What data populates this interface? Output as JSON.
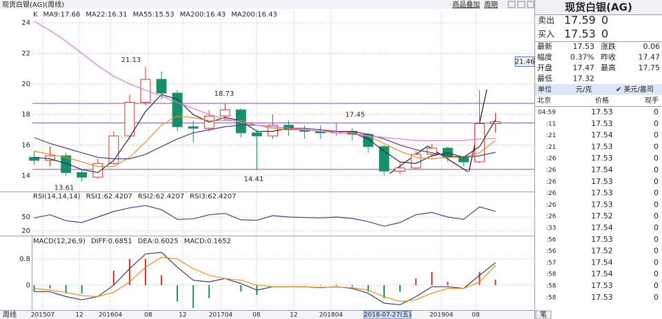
{
  "header": {
    "title": "现货白银(AG)(周线)",
    "buttons": [
      "商品叠加",
      "周期"
    ],
    "period": "周线"
  },
  "chart_data": {
    "type": "candlestick",
    "up_color": "#e0302a",
    "down_color": "#14916a",
    "candles": [
      [
        15.2,
        15.6,
        14.7,
        15.0
      ],
      [
        15.0,
        15.9,
        14.6,
        15.3
      ],
      [
        15.3,
        15.5,
        14.0,
        14.2
      ],
      [
        14.2,
        14.4,
        13.61,
        13.9
      ],
      [
        13.9,
        15.1,
        13.8,
        14.8
      ],
      [
        14.8,
        16.9,
        14.7,
        16.6
      ],
      [
        16.6,
        19.3,
        16.4,
        18.8
      ],
      [
        18.8,
        21.13,
        18.6,
        20.3
      ],
      [
        20.3,
        20.8,
        19.0,
        19.4
      ],
      [
        19.4,
        19.6,
        16.9,
        17.2
      ],
      [
        17.2,
        17.6,
        16.2,
        17.1
      ],
      [
        17.1,
        18.3,
        16.9,
        17.9
      ],
      [
        17.9,
        18.73,
        17.6,
        18.3
      ],
      [
        18.3,
        18.4,
        16.5,
        16.8
      ],
      [
        16.8,
        17.0,
        14.41,
        16.6
      ],
      [
        16.6,
        18.0,
        16.4,
        17.3
      ],
      [
        17.3,
        17.6,
        16.6,
        17.0
      ],
      [
        17.0,
        17.3,
        16.4,
        16.9
      ],
      [
        16.9,
        17.3,
        16.4,
        16.8
      ],
      [
        16.8,
        17.45,
        16.6,
        16.9
      ],
      [
        16.9,
        17.1,
        16.3,
        16.7
      ],
      [
        16.7,
        16.8,
        15.5,
        15.9
      ],
      [
        15.9,
        16.0,
        14.0,
        14.3
      ],
      [
        14.3,
        14.9,
        14.1,
        14.5
      ],
      [
        14.5,
        15.6,
        14.4,
        15.4
      ],
      [
        15.4,
        16.1,
        15.2,
        15.8
      ],
      [
        15.8,
        15.9,
        14.9,
        15.2
      ],
      [
        15.2,
        15.3,
        14.6,
        14.9
      ],
      [
        14.9,
        19.6,
        14.8,
        17.4
      ],
      [
        17.4,
        18.1,
        16.8,
        17.53
      ]
    ],
    "legend_prefix": "K",
    "series": [
      {
        "name": "MA9:17.66",
        "color": "#2c2c3c",
        "values": [
          15.2,
          15.1,
          14.8,
          14.4,
          14.2,
          15.0,
          16.5,
          18.2,
          19.3,
          19.0,
          18.0,
          17.5,
          17.8,
          17.6,
          16.9,
          16.9,
          17.1,
          17.0,
          16.9,
          16.9,
          16.8,
          16.4,
          15.6,
          14.9,
          14.8,
          15.3,
          15.5,
          15.2,
          15.9,
          17.66
        ]
      },
      {
        "name": "MA22:16.31",
        "color": "#e8901c",
        "values": [
          15.6,
          15.4,
          15.2,
          14.9,
          14.6,
          14.6,
          15.2,
          16.2,
          17.3,
          17.9,
          17.8,
          17.6,
          17.6,
          17.6,
          17.3,
          17.1,
          17.0,
          17.0,
          16.9,
          16.9,
          16.8,
          16.6,
          16.1,
          15.6,
          15.2,
          15.1,
          15.2,
          15.2,
          15.5,
          16.31
        ]
      },
      {
        "name": "MA55:15.53",
        "color": "#4a3a8a",
        "values": [
          16.5,
          16.1,
          15.8,
          15.5,
          15.2,
          15.1,
          15.1,
          15.4,
          15.9,
          16.4,
          16.8,
          17.0,
          17.2,
          17.3,
          17.3,
          17.2,
          17.1,
          17.1,
          17.0,
          16.9,
          16.9,
          16.7,
          16.4,
          16.0,
          15.7,
          15.5,
          15.3,
          15.2,
          15.3,
          15.53
        ]
      },
      {
        "name": "MA200:16.43",
        "color": "#d27ce6",
        "values": [
          24.1,
          23.5,
          22.8,
          22.0,
          21.2,
          20.5,
          20.0,
          19.6,
          19.2,
          18.8,
          18.4,
          18.0,
          17.7,
          17.5,
          17.3,
          17.2,
          17.1,
          17.0,
          16.9,
          16.8,
          16.7,
          16.6,
          16.5,
          16.4,
          16.3,
          16.3,
          16.3,
          16.3,
          16.4,
          16.43
        ]
      }
    ],
    "extra_legend": [
      {
        "name": "MA200:16.43",
        "color": "#3a3a70"
      }
    ],
    "ylim": [
      12.96,
      24.77
    ],
    "yticks": [
      14,
      16,
      18,
      20,
      22,
      24
    ],
    "grid": true,
    "levels": [
      18.73,
      17.45,
      14.41
    ],
    "level_color": "#8a4aa8",
    "annotations": [
      21.13,
      18.73,
      17.45,
      14.41,
      13.61
    ],
    "cursor_price": 21.46,
    "x_labels": [
      "201507",
      "12",
      "201604",
      "08",
      "12",
      "201704",
      "08",
      "12",
      "201804",
      "2018-07-27(五)",
      "201904",
      "08"
    ],
    "rsi": {
      "title": "RSI(14,14,14)",
      "series": [
        {
          "name": "RSI1:62.4207",
          "color": "#4a3a8a",
          "values": [
            48,
            55,
            42,
            38,
            50,
            62,
            70,
            75,
            66,
            45,
            46,
            55,
            58,
            44,
            43,
            53,
            50,
            49,
            48,
            50,
            47,
            40,
            30,
            38,
            55,
            60,
            50,
            45,
            72,
            62.4207
          ]
        }
      ],
      "extra_legend": [
        {
          "name": "RSI2:62.4207",
          "color": "#e8901c"
        },
        {
          "name": "RSI3:62.4207",
          "color": "#8a3a8a"
        }
      ],
      "ylim": [
        12.5,
        102.5
      ],
      "yticks": [
        20,
        50
      ]
    },
    "macd": {
      "title": "MACD(12,26,9)",
      "series": [
        {
          "name": "DIFF:0.6851",
          "color": "#3a3a60",
          "values": [
            -0.2,
            -0.2,
            -0.35,
            -0.45,
            -0.35,
            0.0,
            0.5,
            0.95,
            1.0,
            0.55,
            0.15,
            0.1,
            0.2,
            0.05,
            -0.15,
            -0.05,
            -0.05,
            -0.05,
            -0.08,
            -0.05,
            -0.1,
            -0.25,
            -0.55,
            -0.6,
            -0.35,
            -0.05,
            -0.05,
            -0.1,
            0.3,
            0.6851
          ]
        },
        {
          "name": "DEA:0.6025",
          "color": "#e8901c",
          "values": [
            -0.1,
            -0.15,
            -0.22,
            -0.32,
            -0.35,
            -0.22,
            0.1,
            0.55,
            0.85,
            0.8,
            0.5,
            0.3,
            0.2,
            0.15,
            0.0,
            -0.05,
            -0.05,
            -0.05,
            -0.07,
            -0.06,
            -0.08,
            -0.15,
            -0.35,
            -0.5,
            -0.45,
            -0.25,
            -0.1,
            -0.1,
            0.1,
            0.6025
          ]
        }
      ],
      "hist": {
        "name": "MACD:0.1652",
        "color": "#8a3a8a",
        "values": [
          -0.2,
          -0.1,
          -0.26,
          -0.26,
          0,
          0.44,
          0.8,
          0.8,
          0.3,
          -0.5,
          -0.7,
          -0.4,
          0,
          -0.2,
          -0.3,
          0,
          0,
          0,
          -0.02,
          0.02,
          -0.04,
          -0.2,
          -0.4,
          -0.2,
          0.2,
          0.4,
          0.1,
          0,
          0.4,
          0.1652
        ]
      },
      "ylim": [
        -0.74,
        1.47
      ],
      "yticks": [
        0,
        0.8
      ]
    }
  },
  "quote": {
    "title": "现货白银(AG)",
    "sell": {
      "label": "卖出",
      "price": 17.59,
      "vol": 0
    },
    "buy": {
      "label": "买入",
      "price": 17.53,
      "vol": 0
    },
    "stats": [
      [
        "最新",
        17.53,
        "涨跌",
        0.06
      ],
      [
        "幅度",
        "0.37%",
        "昨收",
        17.47
      ],
      [
        "开盘",
        17.47,
        "最高",
        17.75
      ],
      [
        "最低",
        17.32
      ]
    ],
    "unit_label": "单位",
    "unit1": "元/克",
    "unit2": "✔ 美元/盎司",
    "tick_header": [
      "北京",
      "价格",
      "现手"
    ],
    "ticks": [
      [
        "04:59",
        17.53,
        0
      ],
      [
        ":11",
        17.53,
        0
      ],
      [
        ":21",
        17.54,
        0
      ],
      [
        ":21",
        17.53,
        0
      ],
      [
        ":26",
        17.53,
        0
      ],
      [
        ":26",
        17.54,
        0
      ],
      [
        ":26",
        17.53,
        0
      ],
      [
        ":26",
        17.53,
        0
      ],
      [
        ":26",
        17.53,
        0
      ],
      [
        ":26",
        17.52,
        0
      ],
      [
        ":33",
        17.54,
        0
      ],
      [
        ":56",
        17.53,
        0
      ],
      [
        ":56",
        17.52,
        0
      ],
      [
        ":57",
        17.54,
        0
      ],
      [
        ":58",
        17.54,
        0
      ],
      [
        ":58",
        17.53,
        0
      ],
      [
        ":58",
        17.53,
        0
      ]
    ],
    "tab": "笔"
  }
}
